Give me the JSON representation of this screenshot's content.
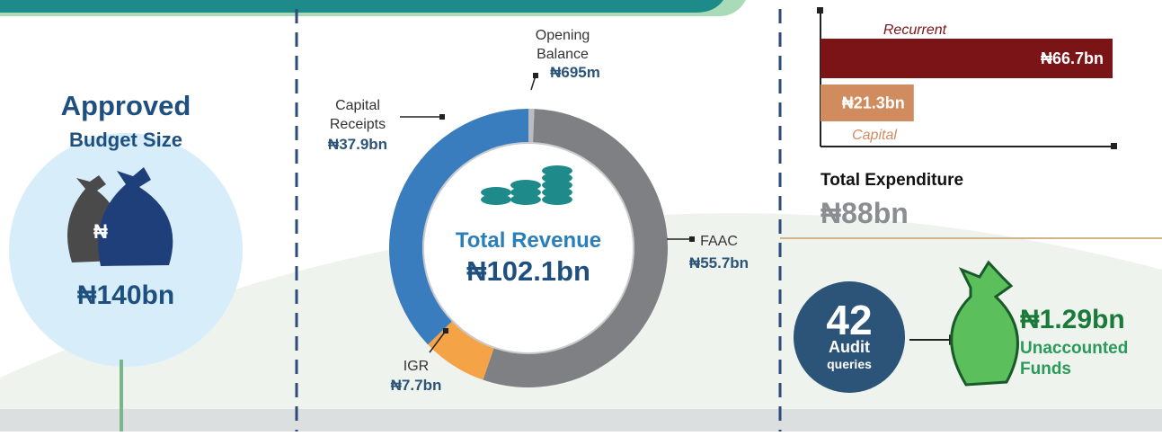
{
  "budget": {
    "title": "Approved",
    "subtitle": "Budget Size",
    "amount": "₦140bn"
  },
  "revenue": {
    "title": "Total Revenue",
    "total": "₦102.1bn",
    "segments": [
      {
        "name_lines": [
          "Opening",
          "Balance"
        ],
        "value": 0.695,
        "label": "₦695m",
        "color": "#b9bcc0"
      },
      {
        "name_lines": [
          "FAAC"
        ],
        "value": 55.7,
        "label": "₦55.7bn",
        "color": "#7f8083"
      },
      {
        "name_lines": [
          "IGR"
        ],
        "value": 7.7,
        "label": "₦7.7bn",
        "color": "#f5a347"
      },
      {
        "name_lines": [
          "Capital",
          "Receipts"
        ],
        "value": 37.9,
        "label": "₦37.9bn",
        "color": "#3a7dbf"
      }
    ]
  },
  "expenditure": {
    "title": "Total Expenditure",
    "total": "₦88bn",
    "bars": [
      {
        "name": "Recurrent",
        "value": 66.7,
        "label": "₦66.7bn",
        "color": "#7b1416"
      },
      {
        "name": "Capital",
        "value": 21.3,
        "label": "₦21.3bn",
        "color": "#d08c5e"
      }
    ]
  },
  "audit": {
    "count": 42,
    "line1": "Audit",
    "line2": "queries",
    "amount": "₦1.29bn",
    "desc_lines": [
      "Unaccounted",
      "Funds"
    ]
  }
}
